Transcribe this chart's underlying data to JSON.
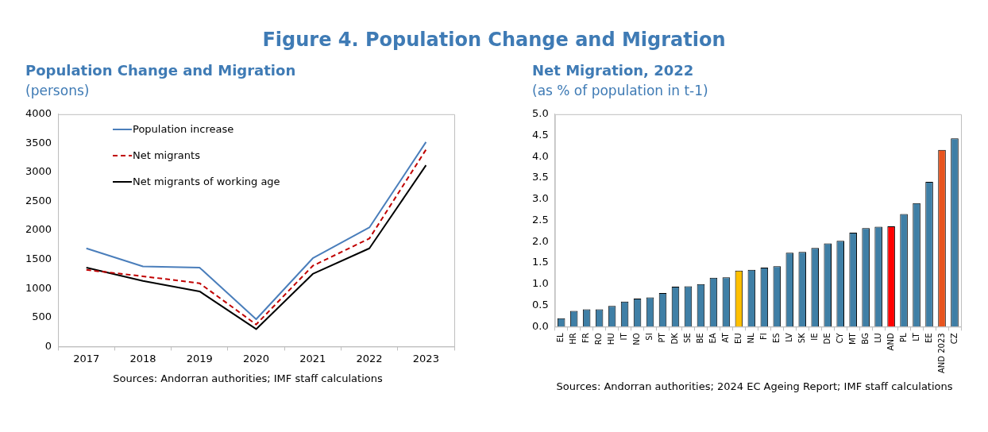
{
  "chart_data": [
    {
      "type": "other",
      "title": "Figure 4. Population Change and Migration"
    },
    {
      "type": "line",
      "title": "Population Change and Migration",
      "subtitle": "(persons)",
      "categories": [
        "2017",
        "2018",
        "2019",
        "2020",
        "2021",
        "2022",
        "2023"
      ],
      "series": [
        {
          "name": "Population increase",
          "color": "#4a7ebb",
          "line_style": "solid",
          "values": [
            1690,
            1380,
            1360,
            470,
            1520,
            2050,
            3520
          ]
        },
        {
          "name": "Net migrants",
          "color": "#c00000",
          "line_style": "dashed",
          "values": [
            1320,
            1210,
            1090,
            380,
            1390,
            1860,
            3390
          ]
        },
        {
          "name": "Net migrants of working age",
          "color": "#000000",
          "line_style": "solid",
          "values": [
            1360,
            1130,
            950,
            300,
            1250,
            1690,
            3120
          ]
        }
      ],
      "ylim": [
        0,
        4000
      ],
      "yticks": [
        0,
        500,
        1000,
        1500,
        2000,
        2500,
        3000,
        3500,
        4000
      ],
      "grid": false,
      "legend": "top left",
      "marker": "none",
      "annotations": [
        "Sources: Andorran authorities; IMF staff calculations"
      ]
    },
    {
      "type": "bar",
      "title": "Net Migration, 2022",
      "subtitle": "(as % of population in t-1)",
      "categories": [
        "EL",
        "HR",
        "FR",
        "RO",
        "HU",
        "IT",
        "NO",
        "SI",
        "PT",
        "DK",
        "SE",
        "BE",
        "EA",
        "AT",
        "EU",
        "NL",
        "FI",
        "ES",
        "LV",
        "SK",
        "IE",
        "DE",
        "CY",
        "MT",
        "BG",
        "LU",
        "AND",
        "PL",
        "LT",
        "EE",
        "AND 2023",
        "CZ"
      ],
      "values": [
        0.2,
        0.37,
        0.41,
        0.41,
        0.49,
        0.59,
        0.66,
        0.69,
        0.79,
        0.94,
        0.95,
        1.0,
        1.15,
        1.16,
        1.32,
        1.34,
        1.39,
        1.42,
        1.74,
        1.76,
        1.85,
        1.96,
        2.02,
        2.21,
        2.32,
        2.35,
        2.36,
        2.65,
        2.91,
        3.41,
        4.16,
        4.43
      ],
      "colors": [
        "#3f7fa6",
        "#3f7fa6",
        "#3f7fa6",
        "#3f7fa6",
        "#3f7fa6",
        "#3f7fa6",
        "#3f7fa6",
        "#3f7fa6",
        "#3f7fa6",
        "#3f7fa6",
        "#3f7fa6",
        "#3f7fa6",
        "#3f7fa6",
        "#3f7fa6",
        "#ffc000",
        "#3f7fa6",
        "#3f7fa6",
        "#3f7fa6",
        "#3f7fa6",
        "#3f7fa6",
        "#3f7fa6",
        "#3f7fa6",
        "#3f7fa6",
        "#3f7fa6",
        "#3f7fa6",
        "#3f7fa6",
        "#ff0000",
        "#3f7fa6",
        "#3f7fa6",
        "#3f7fa6",
        "#e8541e",
        "#3f7fa6"
      ],
      "ylim": [
        0,
        5
      ],
      "yticks": [
        {
          "value": 0,
          "label": "0.0"
        },
        {
          "value": 0.5,
          "label": "0.5"
        },
        {
          "value": 1,
          "label": "1.0"
        },
        {
          "value": 1.5,
          "label": "1.5"
        },
        {
          "value": 2,
          "label": "2.0"
        },
        {
          "value": 2.5,
          "label": "2.5"
        },
        {
          "value": 3,
          "label": "3.0"
        },
        {
          "value": 3.5,
          "label": "3.5"
        },
        {
          "value": 4,
          "label": "4.0"
        },
        {
          "value": 4.5,
          "label": "4.5"
        },
        {
          "value": 5,
          "label": "5.0"
        }
      ],
      "grid": false,
      "annotations": [
        "Sources: Andorran authorities; 2024 EC Ageing Report; IMF staff calculations"
      ]
    }
  ]
}
